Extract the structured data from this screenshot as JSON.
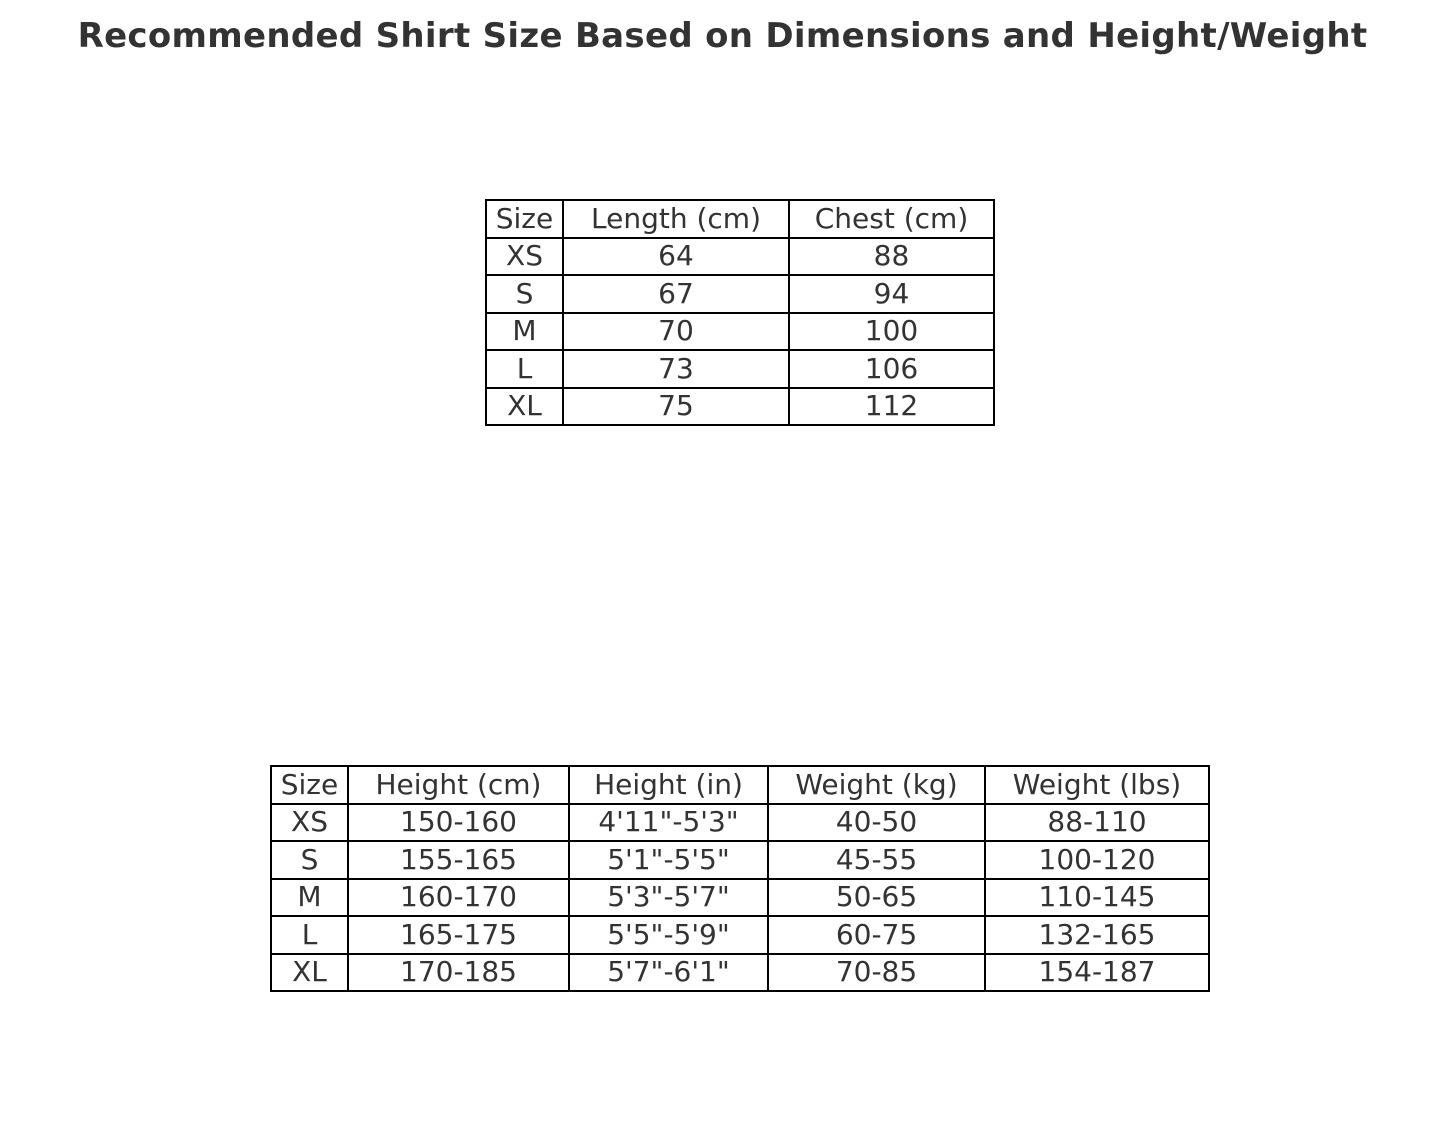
{
  "chart_data": {
    "type": "table",
    "title": "Recommended Shirt Size Based on Dimensions and Height/Weight",
    "tables": [
      {
        "columns": [
          "Size",
          "Length (cm)",
          "Chest (cm)"
        ],
        "rows": [
          [
            "XS",
            "64",
            "88"
          ],
          [
            "S",
            "67",
            "94"
          ],
          [
            "M",
            "70",
            "100"
          ],
          [
            "L",
            "73",
            "106"
          ],
          [
            "XL",
            "75",
            "112"
          ]
        ]
      },
      {
        "columns": [
          "Size",
          "Height (cm)",
          "Height (in)",
          "Weight (kg)",
          "Weight (lbs)"
        ],
        "rows": [
          [
            "XS",
            "150-160",
            "4'11\"-5'3\"",
            "40-50",
            "88-110"
          ],
          [
            "S",
            "155-165",
            "5'1\"-5'5\"",
            "45-55",
            "100-120"
          ],
          [
            "M",
            "160-170",
            "5'3\"-5'7\"",
            "50-65",
            "110-145"
          ],
          [
            "L",
            "165-175",
            "5'5\"-5'9\"",
            "60-75",
            "132-165"
          ],
          [
            "XL",
            "170-185",
            "5'7\"-6'1\"",
            "70-85",
            "154-187"
          ]
        ]
      }
    ]
  }
}
